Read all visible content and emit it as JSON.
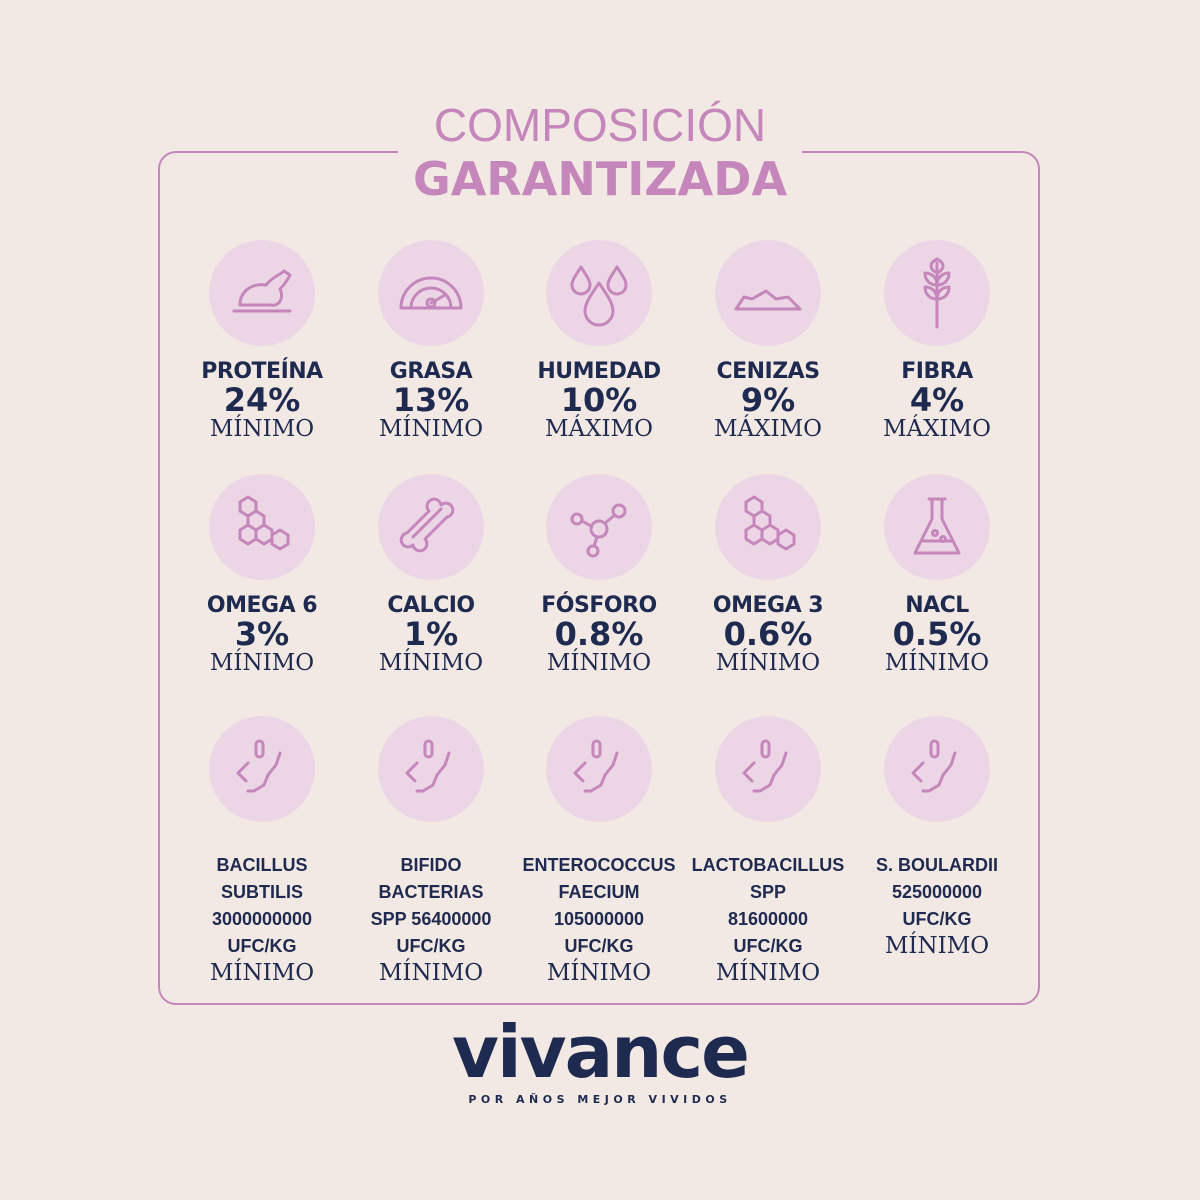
{
  "header": {
    "line1": "COMPOSICIÓN",
    "line2": "GARANTIZADA"
  },
  "colors": {
    "accent": "#c486bb",
    "circle": "#ecd6e6",
    "text": "#1e2a4f",
    "background": "#f3e9e4"
  },
  "nutrients": [
    {
      "name": "PROTEÍNA",
      "value": "24%",
      "qualifier": "MÍNIMO",
      "icon": "chicken-icon"
    },
    {
      "name": "GRASA",
      "value": "13%",
      "qualifier": "MÍNIMO",
      "icon": "gauge-icon"
    },
    {
      "name": "HUMEDAD",
      "value": "10%",
      "qualifier": "MÁXIMO",
      "icon": "water-drops-icon"
    },
    {
      "name": "CENIZAS",
      "value": "9%",
      "qualifier": "MÁXIMO",
      "icon": "ash-pile-icon"
    },
    {
      "name": "FIBRA",
      "value": "4%",
      "qualifier": "MÁXIMO",
      "icon": "wheat-icon"
    },
    {
      "name": "OMEGA 6",
      "value": "3%",
      "qualifier": "MÍNIMO",
      "icon": "molecule-rings-icon"
    },
    {
      "name": "CALCIO",
      "value": "1%",
      "qualifier": "MÍNIMO",
      "icon": "bone-icon"
    },
    {
      "name": "FÓSFORO",
      "value": "0.8%",
      "qualifier": "MÍNIMO",
      "icon": "molecule-icon"
    },
    {
      "name": "OMEGA 3",
      "value": "0.6%",
      "qualifier": "MÍNIMO",
      "icon": "molecule-rings-icon"
    },
    {
      "name": "NACL",
      "value": "0.5%",
      "qualifier": "MÍNIMO",
      "icon": "flask-icon"
    }
  ],
  "probiotics": [
    {
      "lines": [
        "BACILLUS",
        "SUBTILIS",
        "3000000000",
        "UFC/KG"
      ],
      "qualifier": "MÍNIMO",
      "icon": "bacteria-icon"
    },
    {
      "lines": [
        "BIFIDO",
        "BACTERIAS",
        "SPP 56400000",
        "UFC/KG"
      ],
      "qualifier": "MÍNIMO",
      "icon": "bacteria-icon"
    },
    {
      "lines": [
        "ENTEROCOCCUS",
        "FAECIUM",
        "105000000",
        "UFC/KG"
      ],
      "qualifier": "MÍNIMO",
      "icon": "bacteria-icon"
    },
    {
      "lines": [
        "LACTOBACILLUS",
        "SPP",
        "81600000",
        "UFC/KG"
      ],
      "qualifier": "MÍNIMO",
      "icon": "bacteria-icon"
    },
    {
      "lines": [
        "S. BOULARDII",
        "525000000",
        "UFC/KG"
      ],
      "qualifier": "MÍNIMO",
      "icon": "bacteria-icon"
    }
  ],
  "brand": {
    "logo": "vivance",
    "tagline": "POR AÑOS MEJOR VIVIDOS"
  }
}
